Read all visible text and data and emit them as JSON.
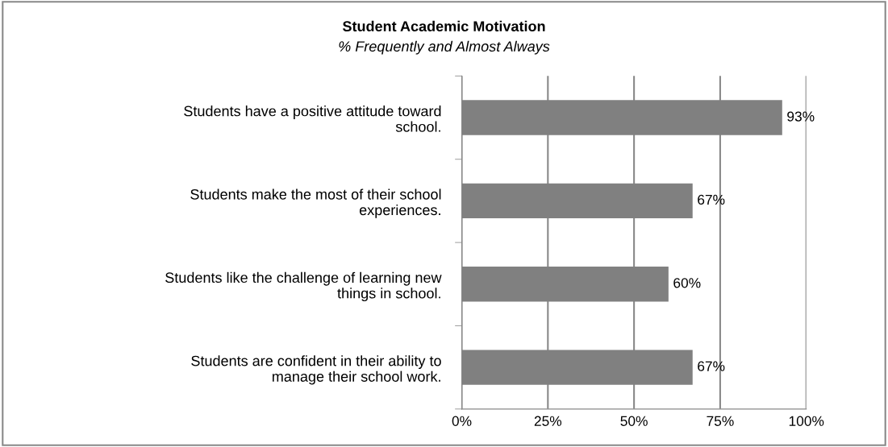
{
  "chart_data": {
    "type": "bar",
    "orientation": "horizontal",
    "title": "Student Academic Motivation",
    "subtitle": "% Frequently and Almost Always",
    "categories": [
      "Students have a positive attitude toward school.",
      "Students make the most of their school experiences.",
      "Students like the challenge of learning new things in school.",
      "Students are confident in their ability to manage their school work."
    ],
    "values": [
      93,
      67,
      60,
      67
    ],
    "color": "#808080",
    "value_labels": [
      "93%",
      "67%",
      "60%",
      "67%"
    ],
    "xlim": [
      0,
      100
    ],
    "xticks": [
      {
        "value": 0,
        "label": "0%"
      },
      {
        "value": 25,
        "label": "25%"
      },
      {
        "value": 50,
        "label": "50%"
      },
      {
        "value": 75,
        "label": "75%"
      },
      {
        "value": 100,
        "label": "100%"
      }
    ],
    "grid": "x",
    "legend": false
  }
}
